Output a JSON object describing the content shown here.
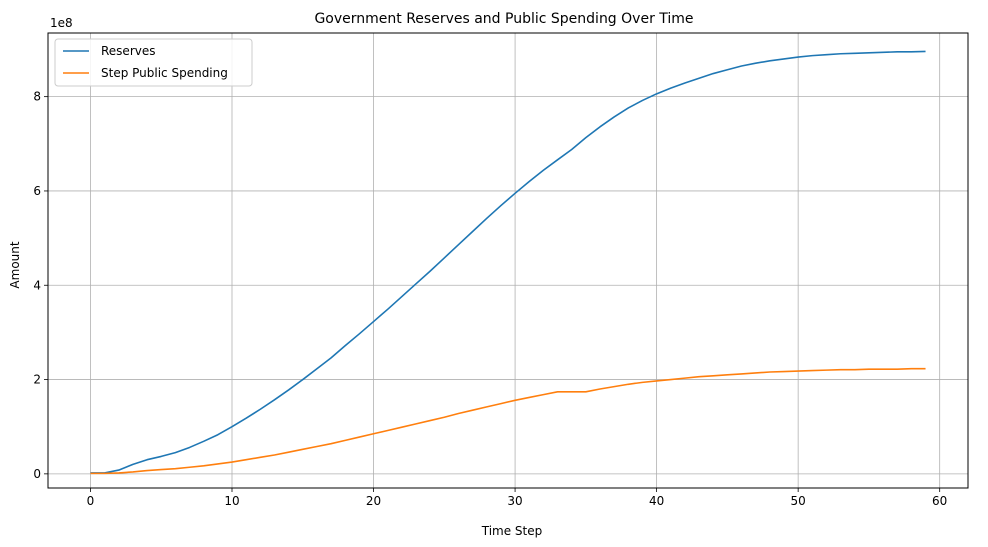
{
  "chart_data": {
    "type": "line",
    "title": "Government Reserves and Public Spending Over Time",
    "xlabel": "Time Step",
    "ylabel": "Amount",
    "y_multiplier_label": "1e8",
    "xlim": [
      -3,
      62
    ],
    "ylim": [
      -0.3,
      9.35
    ],
    "xticks": [
      0,
      10,
      20,
      30,
      40,
      50,
      60
    ],
    "yticks": [
      0,
      2,
      4,
      6,
      8
    ],
    "grid": true,
    "legend_position": "upper-left",
    "x": [
      0,
      1,
      2,
      3,
      4,
      5,
      6,
      7,
      8,
      9,
      10,
      11,
      12,
      13,
      14,
      15,
      16,
      17,
      18,
      19,
      20,
      21,
      22,
      23,
      24,
      25,
      26,
      27,
      28,
      29,
      30,
      31,
      32,
      33,
      34,
      35,
      36,
      37,
      38,
      39,
      40,
      41,
      42,
      43,
      44,
      45,
      46,
      47,
      48,
      49,
      50,
      51,
      52,
      53,
      54,
      55,
      56,
      57,
      58,
      59
    ],
    "series": [
      {
        "name": "Reserves",
        "color": "#1f77b4",
        "values": [
          0.02,
          0.02,
          0.08,
          0.2,
          0.3,
          0.37,
          0.45,
          0.56,
          0.69,
          0.83,
          1.0,
          1.18,
          1.37,
          1.57,
          1.78,
          2.0,
          2.23,
          2.46,
          2.72,
          2.97,
          3.23,
          3.49,
          3.76,
          4.03,
          4.3,
          4.58,
          4.86,
          5.14,
          5.42,
          5.69,
          5.95,
          6.2,
          6.44,
          6.66,
          6.88,
          7.13,
          7.36,
          7.57,
          7.76,
          7.92,
          8.06,
          8.18,
          8.29,
          8.39,
          8.49,
          8.57,
          8.65,
          8.71,
          8.76,
          8.8,
          8.84,
          8.87,
          8.89,
          8.91,
          8.92,
          8.93,
          8.94,
          8.95,
          8.95,
          8.96
        ]
      },
      {
        "name": "Step Public Spending",
        "color": "#ff7f0e",
        "values": [
          0.01,
          0.01,
          0.02,
          0.04,
          0.07,
          0.09,
          0.11,
          0.14,
          0.17,
          0.21,
          0.25,
          0.3,
          0.35,
          0.4,
          0.46,
          0.52,
          0.58,
          0.64,
          0.71,
          0.78,
          0.85,
          0.92,
          0.99,
          1.06,
          1.13,
          1.2,
          1.28,
          1.35,
          1.42,
          1.49,
          1.56,
          1.62,
          1.68,
          1.74,
          1.74,
          1.74,
          1.8,
          1.85,
          1.9,
          1.94,
          1.97,
          2.0,
          2.03,
          2.06,
          2.08,
          2.1,
          2.12,
          2.14,
          2.16,
          2.17,
          2.18,
          2.19,
          2.2,
          2.21,
          2.21,
          2.22,
          2.22,
          2.22,
          2.23,
          2.23
        ]
      }
    ]
  }
}
